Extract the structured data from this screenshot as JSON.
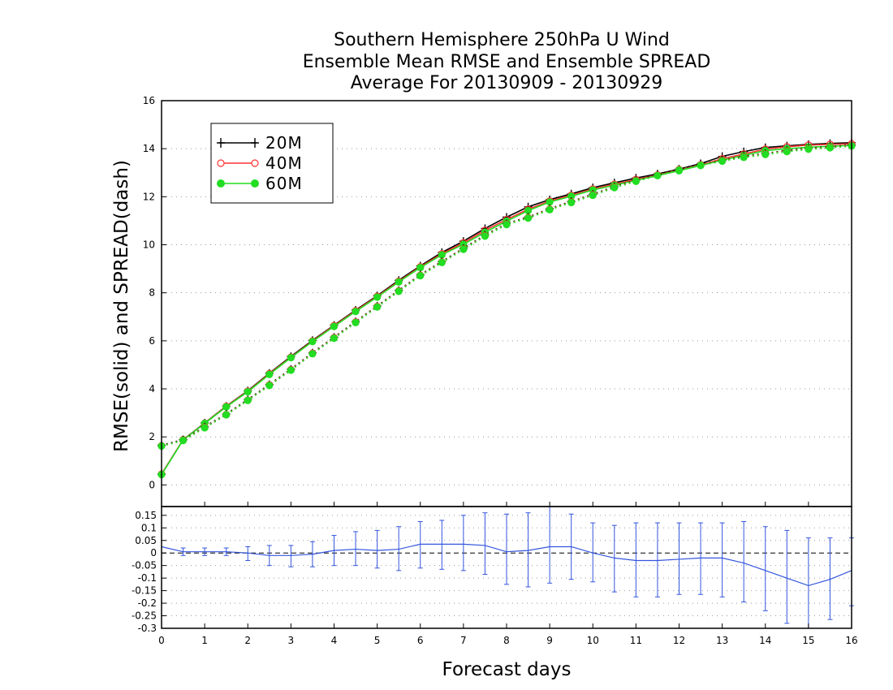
{
  "chart_data": [
    {
      "type": "line",
      "title": [
        "Southern Hemisphere 250hPa U Wind",
        "Ensemble Mean RMSE and Ensemble SPREAD",
        "Average For 20130909 - 20130929"
      ],
      "xlabel": "Forecast days",
      "ylabel": "RMSE(solid)  and  SPREAD(dash)",
      "xlim": [
        0,
        16
      ],
      "ylim": [
        -0.9,
        16
      ],
      "x_ticks": [
        "0",
        "1",
        "2",
        "3",
        "4",
        "5",
        "6",
        "7",
        "8",
        "9",
        "10",
        "11",
        "12",
        "13",
        "14",
        "15",
        "16"
      ],
      "y_ticks": [
        "0",
        "2",
        "4",
        "6",
        "8",
        "10",
        "12",
        "14",
        "16"
      ],
      "grid": true,
      "legend_position": "top-left",
      "x": [
        0,
        0.5,
        1,
        1.5,
        2,
        2.5,
        3,
        3.5,
        4,
        4.5,
        5,
        5.5,
        6,
        6.5,
        7,
        7.5,
        8,
        8.5,
        9,
        9.5,
        10,
        10.5,
        11,
        11.5,
        12,
        12.5,
        13,
        13.5,
        14,
        14.5,
        15,
        15.5,
        16
      ],
      "series": [
        {
          "name": "20M",
          "style": "solid",
          "marker": "plus",
          "color": "#000000",
          "values": [
            0.45,
            1.88,
            2.58,
            3.28,
            3.92,
            4.65,
            5.35,
            6.02,
            6.65,
            7.28,
            7.88,
            8.52,
            9.12,
            9.68,
            10.15,
            10.68,
            11.15,
            11.58,
            11.88,
            12.12,
            12.38,
            12.58,
            12.78,
            12.95,
            13.15,
            13.38,
            13.68,
            13.88,
            14.05,
            14.12,
            14.18,
            14.22,
            14.25
          ]
        },
        {
          "name": "40M",
          "style": "solid",
          "marker": "circle-open",
          "color": "#ff3333",
          "values": [
            0.45,
            1.88,
            2.57,
            3.27,
            3.9,
            4.63,
            5.32,
            5.99,
            6.63,
            7.25,
            7.85,
            8.48,
            9.08,
            9.62,
            10.08,
            10.6,
            11.05,
            11.48,
            11.82,
            12.06,
            12.32,
            12.52,
            12.72,
            12.9,
            13.1,
            13.32,
            13.58,
            13.78,
            13.98,
            14.08,
            14.15,
            14.18,
            14.2
          ]
        },
        {
          "name": "60M",
          "style": "solid",
          "marker": "circle-filled",
          "color": "#22dd22",
          "values": [
            0.43,
            1.87,
            2.56,
            3.25,
            3.88,
            4.6,
            5.3,
            5.97,
            6.6,
            7.22,
            7.82,
            8.45,
            9.05,
            9.58,
            10.02,
            10.52,
            10.98,
            11.42,
            11.78,
            12.02,
            12.28,
            12.48,
            12.68,
            12.88,
            13.08,
            13.3,
            13.52,
            13.72,
            13.92,
            14.0,
            14.06,
            14.1,
            14.14
          ]
        },
        {
          "name": "20M spread",
          "style": "dash",
          "marker": "plus",
          "color": "#000000",
          "values": [
            1.65,
            1.88,
            2.42,
            2.95,
            3.55,
            4.18,
            4.82,
            5.5,
            6.15,
            6.8,
            7.45,
            8.1,
            8.75,
            9.3,
            9.85,
            10.4,
            10.88,
            11.15,
            11.5,
            11.8,
            12.1,
            12.42,
            12.68,
            12.92,
            13.15,
            13.35,
            13.52,
            13.68,
            13.8,
            13.92,
            14.02,
            14.08,
            14.15
          ]
        },
        {
          "name": "40M spread",
          "style": "dash",
          "marker": "circle-open",
          "color": "#ff3333",
          "values": [
            1.63,
            1.86,
            2.4,
            2.93,
            3.53,
            4.16,
            4.8,
            5.48,
            6.13,
            6.78,
            7.43,
            8.08,
            8.73,
            9.28,
            9.83,
            10.38,
            10.86,
            11.13,
            11.48,
            11.78,
            12.08,
            12.4,
            12.66,
            12.9,
            13.13,
            13.33,
            13.5,
            13.66,
            13.78,
            13.9,
            14.0,
            14.06,
            14.13
          ]
        },
        {
          "name": "60M spread",
          "style": "dash",
          "marker": "circle-filled",
          "color": "#22dd22",
          "values": [
            1.62,
            1.85,
            2.38,
            2.92,
            3.52,
            4.14,
            4.78,
            5.46,
            6.11,
            6.76,
            7.41,
            8.06,
            8.71,
            9.26,
            9.81,
            10.36,
            10.84,
            11.11,
            11.46,
            11.76,
            12.06,
            12.38,
            12.64,
            12.88,
            13.11,
            13.31,
            13.48,
            13.64,
            13.76,
            13.88,
            13.98,
            14.04,
            14.11
          ]
        }
      ],
      "legend": [
        "20M",
        "40M",
        "60M"
      ]
    },
    {
      "type": "line",
      "xlim": [
        0,
        16
      ],
      "ylim": [
        -0.3,
        0.185
      ],
      "x_ticks": [
        "0",
        "1",
        "2",
        "3",
        "4",
        "5",
        "6",
        "7",
        "8",
        "9",
        "10",
        "11",
        "12",
        "13",
        "14",
        "15",
        "16"
      ],
      "y_ticks": [
        "0.15",
        "0.1",
        "0.05",
        "0",
        "-0.05",
        "-0.1",
        "-0.15",
        "-0.2",
        "-0.25",
        "-0.3"
      ],
      "grid": true,
      "zero_line": "dashed",
      "color": "#3355dd",
      "x": [
        0,
        0.5,
        1,
        1.5,
        2,
        2.5,
        3,
        3.5,
        4,
        4.5,
        5,
        5.5,
        6,
        6.5,
        7,
        7.5,
        8,
        8.5,
        9,
        9.5,
        10,
        10.5,
        11,
        11.5,
        12,
        12.5,
        13,
        13.5,
        14,
        14.5,
        15,
        15.5,
        16
      ],
      "values": [
        0.025,
        0.005,
        0.005,
        0.005,
        0.0,
        -0.01,
        -0.01,
        -0.005,
        0.01,
        0.015,
        0.01,
        0.015,
        0.035,
        0.035,
        0.035,
        0.03,
        0.005,
        0.01,
        0.025,
        0.025,
        0.0,
        -0.02,
        -0.03,
        -0.03,
        -0.025,
        -0.02,
        -0.02,
        -0.04,
        -0.07,
        -0.1,
        -0.13,
        -0.105,
        -0.07
      ],
      "error_low": [
        null,
        -0.01,
        -0.01,
        -0.01,
        -0.03,
        -0.05,
        -0.055,
        -0.055,
        -0.05,
        -0.05,
        -0.06,
        -0.07,
        -0.06,
        -0.065,
        -0.07,
        -0.085,
        -0.125,
        -0.135,
        -0.12,
        -0.105,
        -0.115,
        -0.155,
        -0.175,
        -0.175,
        -0.165,
        -0.165,
        -0.175,
        -0.195,
        -0.23,
        -0.28,
        -0.3,
        -0.265,
        -0.21
      ],
      "error_high": [
        null,
        0.02,
        0.02,
        0.02,
        0.025,
        0.03,
        0.03,
        0.045,
        0.07,
        0.085,
        0.09,
        0.105,
        0.125,
        0.13,
        0.15,
        0.16,
        0.155,
        0.16,
        0.185,
        0.155,
        0.12,
        0.11,
        0.12,
        0.12,
        0.12,
        0.12,
        0.12,
        0.125,
        0.105,
        0.09,
        0.06,
        0.06,
        0.06
      ]
    }
  ]
}
